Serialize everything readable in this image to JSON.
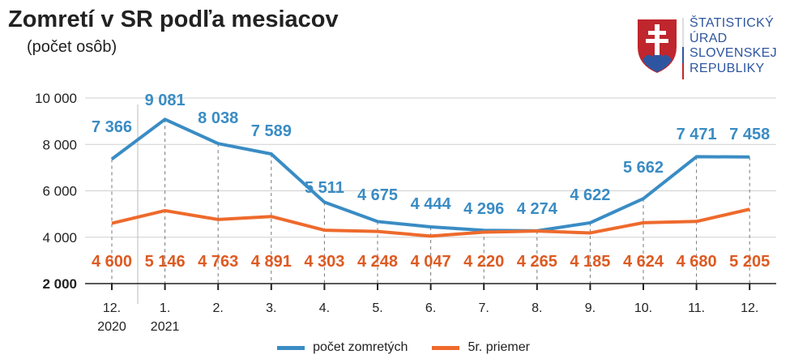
{
  "header": {
    "title": "Zomretí v SR podľa mesiacov",
    "subtitle": "(počet osôb)"
  },
  "logo": {
    "lines": [
      "ŠTATISTICKÝ",
      "ÚRAD",
      "SLOVENSKEJ",
      "REPUBLIKY"
    ]
  },
  "colors": {
    "deaths": "#3a8cc4",
    "avg": "#ee6a2c",
    "avg_label": "#dd5a22"
  },
  "chart_data": {
    "type": "line",
    "title": "Zomretí v SR podľa mesiacov",
    "ylabel": "(počet osôb)",
    "ylim": [
      2000,
      10000
    ],
    "yticks": [
      {
        "v": 10000,
        "label": "10 000"
      },
      {
        "v": 8000,
        "label": "8 000"
      },
      {
        "v": 6000,
        "label": "6 000"
      },
      {
        "v": 4000,
        "label": "4 000"
      },
      {
        "v": 2000,
        "label": "2 000"
      }
    ],
    "categories": [
      "12.",
      "1.",
      "2.",
      "3.",
      "4.",
      "5.",
      "6.",
      "7.",
      "8.",
      "9.",
      "10.",
      "11.",
      "12."
    ],
    "year_labels": [
      {
        "index": 0,
        "label": "2020"
      },
      {
        "index": 1,
        "label": "2021"
      }
    ],
    "grid": true,
    "legend_position": "bottom",
    "series": [
      {
        "name": "počet zomretých",
        "values": [
          7366,
          9081,
          8038,
          7589,
          5511,
          4675,
          4444,
          4296,
          4274,
          4622,
          5662,
          7471,
          7458
        ],
        "labels": [
          "7 366",
          "9 081",
          "8 038",
          "7 589",
          "5 511",
          "4 675",
          "4 444",
          "4 296",
          "4 274",
          "4 622",
          "5 662",
          "7 471",
          "7 458"
        ]
      },
      {
        "name": "5r. priemer",
        "values": [
          4600,
          5146,
          4763,
          4891,
          4303,
          4248,
          4047,
          4220,
          4265,
          4185,
          4624,
          4680,
          5205
        ],
        "labels": [
          "4 600",
          "5 146",
          "4 763",
          "4 891",
          "4 303",
          "4 248",
          "4 047",
          "4 220",
          "4 265",
          "4 185",
          "4 624",
          "4 680",
          "5 205"
        ]
      }
    ]
  }
}
